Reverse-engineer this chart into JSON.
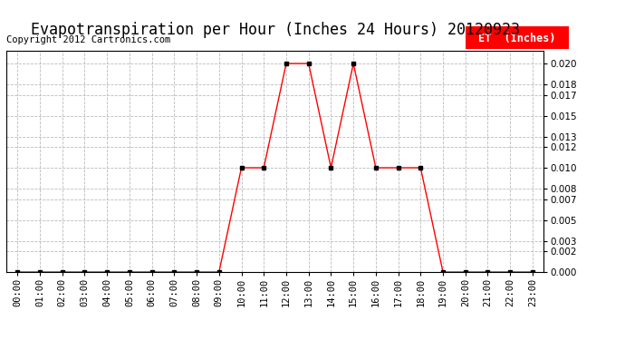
{
  "title": "Evapotranspiration per Hour (Inches 24 Hours) 20120923",
  "copyright": "Copyright 2012 Cartronics.com",
  "legend_label": "ET  (Inches)",
  "line_color": "red",
  "marker_color": "black",
  "background_color": "#ffffff",
  "grid_color": "#bbbbbb",
  "hours": [
    "00:00",
    "01:00",
    "02:00",
    "03:00",
    "04:00",
    "05:00",
    "06:00",
    "07:00",
    "08:00",
    "09:00",
    "10:00",
    "11:00",
    "12:00",
    "13:00",
    "14:00",
    "15:00",
    "16:00",
    "17:00",
    "18:00",
    "19:00",
    "20:00",
    "21:00",
    "22:00",
    "23:00"
  ],
  "values": [
    0.0,
    0.0,
    0.0,
    0.0,
    0.0,
    0.0,
    0.0,
    0.0,
    0.0,
    0.0,
    0.01,
    0.01,
    0.02,
    0.02,
    0.01,
    0.02,
    0.01,
    0.01,
    0.01,
    0.0,
    0.0,
    0.0,
    0.0,
    0.0
  ],
  "ylim": [
    0.0,
    0.0212
  ],
  "yticks": [
    0.0,
    0.002,
    0.003,
    0.005,
    0.007,
    0.008,
    0.01,
    0.012,
    0.013,
    0.015,
    0.017,
    0.018,
    0.02
  ],
  "title_fontsize": 12,
  "copyright_fontsize": 7.5,
  "legend_fontsize": 8.5,
  "tick_fontsize": 7.5,
  "figwidth": 6.9,
  "figheight": 3.75,
  "dpi": 100
}
